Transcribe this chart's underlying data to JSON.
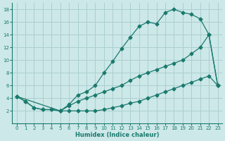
{
  "xlabel": "Humidex (Indice chaleur)",
  "bg_color": "#cde8e8",
  "grid_color": "#aacfcf",
  "line_color": "#1a7a6e",
  "xlim": [
    -0.5,
    23.5
  ],
  "ylim": [
    0,
    19
  ],
  "xticks": [
    0,
    1,
    2,
    3,
    4,
    5,
    6,
    7,
    8,
    9,
    10,
    11,
    12,
    13,
    14,
    15,
    16,
    17,
    18,
    19,
    20,
    21,
    22,
    23
  ],
  "yticks": [
    2,
    4,
    6,
    8,
    10,
    12,
    14,
    16,
    18
  ],
  "series1_x": [
    0,
    1,
    2,
    3,
    4,
    5,
    6,
    7,
    8,
    9,
    10,
    11,
    12,
    13,
    14,
    15,
    16,
    17,
    18,
    19,
    20,
    21,
    22,
    23
  ],
  "series1_y": [
    4.3,
    3.5,
    2.5,
    2.2,
    2.2,
    2.0,
    3.0,
    4.5,
    5.0,
    6.0,
    8.0,
    9.8,
    11.8,
    13.6,
    15.3,
    16.0,
    15.7,
    17.5,
    18.0,
    17.5,
    17.2,
    16.5,
    14.0,
    6.0
  ],
  "series2_x": [
    0,
    5,
    6,
    7,
    8,
    9,
    10,
    11,
    12,
    13,
    14,
    15,
    16,
    17,
    18,
    19,
    20,
    21,
    22,
    23
  ],
  "series2_y": [
    4.3,
    2.0,
    2.8,
    3.5,
    4.0,
    4.5,
    5.0,
    5.5,
    6.0,
    6.8,
    7.5,
    8.0,
    8.5,
    9.0,
    9.5,
    10.0,
    11.0,
    12.0,
    14.0,
    6.0
  ],
  "series3_x": [
    0,
    1,
    2,
    3,
    4,
    5,
    6,
    7,
    8,
    9,
    10,
    11,
    12,
    13,
    14,
    15,
    16,
    17,
    18,
    19,
    20,
    21,
    22,
    23
  ],
  "series3_y": [
    4.3,
    3.5,
    2.5,
    2.2,
    2.2,
    2.0,
    2.0,
    2.0,
    2.0,
    2.0,
    2.2,
    2.5,
    2.8,
    3.2,
    3.5,
    4.0,
    4.5,
    5.0,
    5.5,
    6.0,
    6.5,
    7.0,
    7.5,
    6.0
  ]
}
